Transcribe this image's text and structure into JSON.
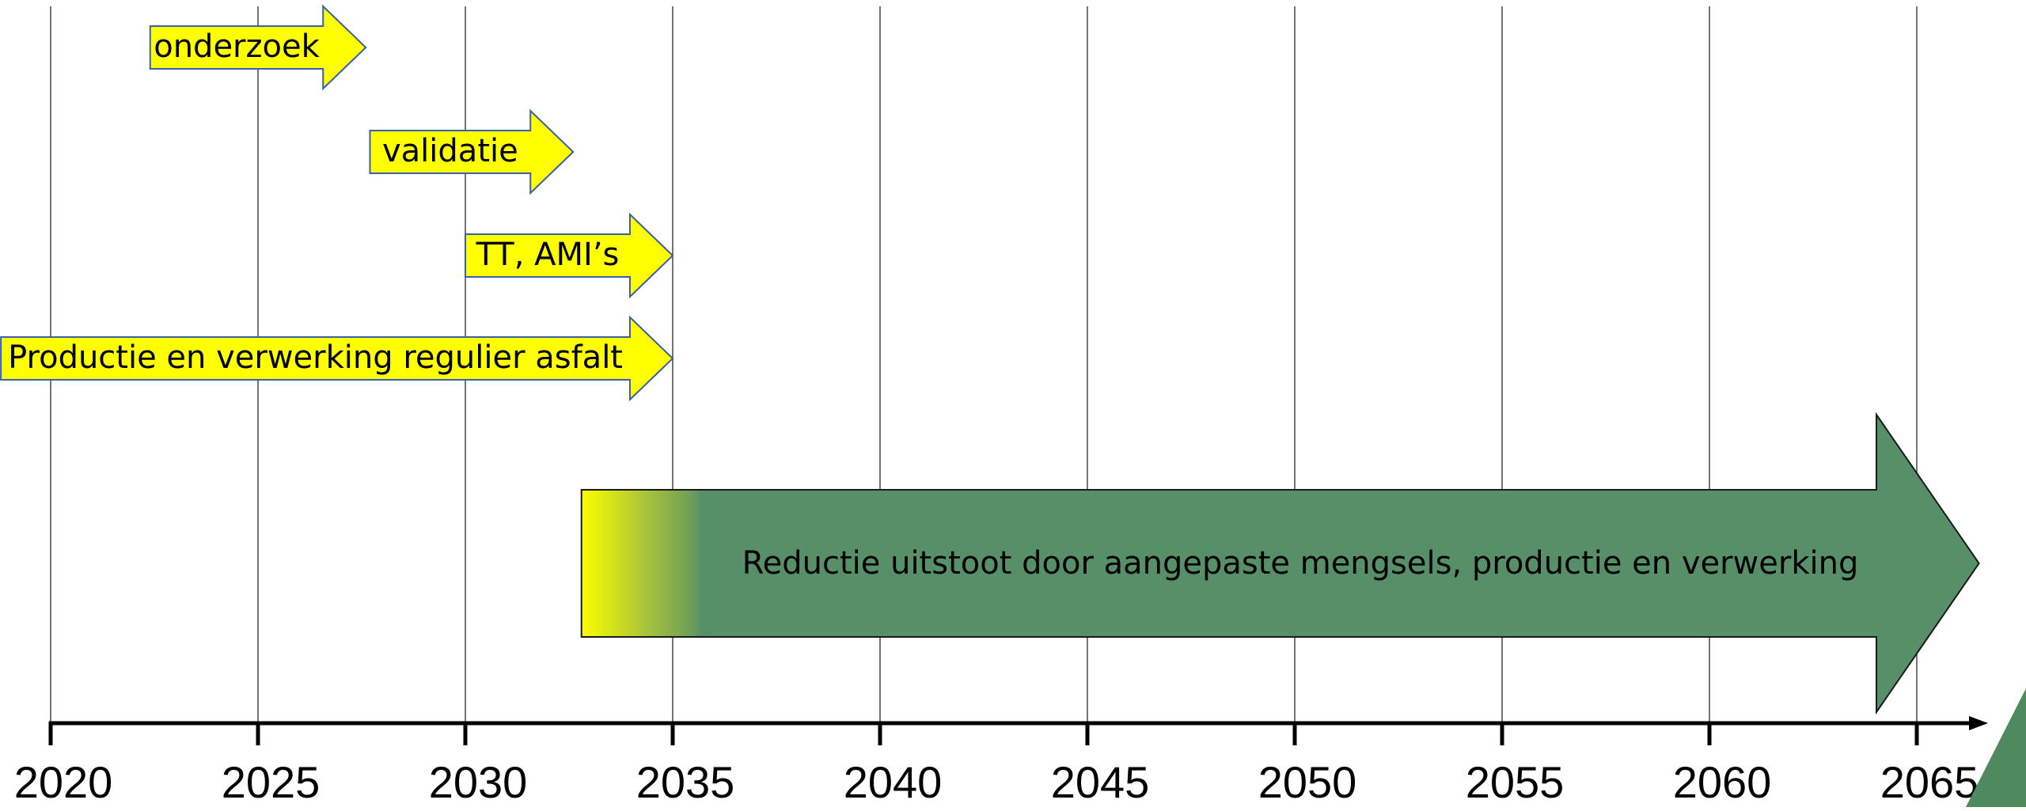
{
  "timeline": {
    "years": [
      "2020",
      "2025",
      "2030",
      "2035",
      "2040",
      "2045",
      "2050",
      "2055",
      "2060",
      "2065"
    ],
    "first_year": 2020,
    "step": 5
  },
  "phases": [
    {
      "label": "onderzoek",
      "start": 2022.4,
      "end": 2027.6
    },
    {
      "label": "validatie",
      "start": 2027.7,
      "end": 2032.6
    },
    {
      "label": "TT, AMI’s",
      "start": 2030.0,
      "end": 2035.0
    },
    {
      "label": "Productie en verwerking regulier asfalt",
      "start": 2018.8,
      "end": 2035.0
    }
  ],
  "main_arrow": {
    "label": "Reductie uitstoot door aangepaste mengsels, productie en verwerking",
    "start": 2032.8,
    "end": 2066.5
  },
  "colors": {
    "phase_fill": "#ffff00",
    "phase_stroke": "#3a5fb0",
    "main_fill": "#578f68",
    "gradient_start": "#ffff00",
    "axis": "#000000",
    "grid": "#3a3a3a",
    "corner_accent": "#4e8a5e"
  }
}
